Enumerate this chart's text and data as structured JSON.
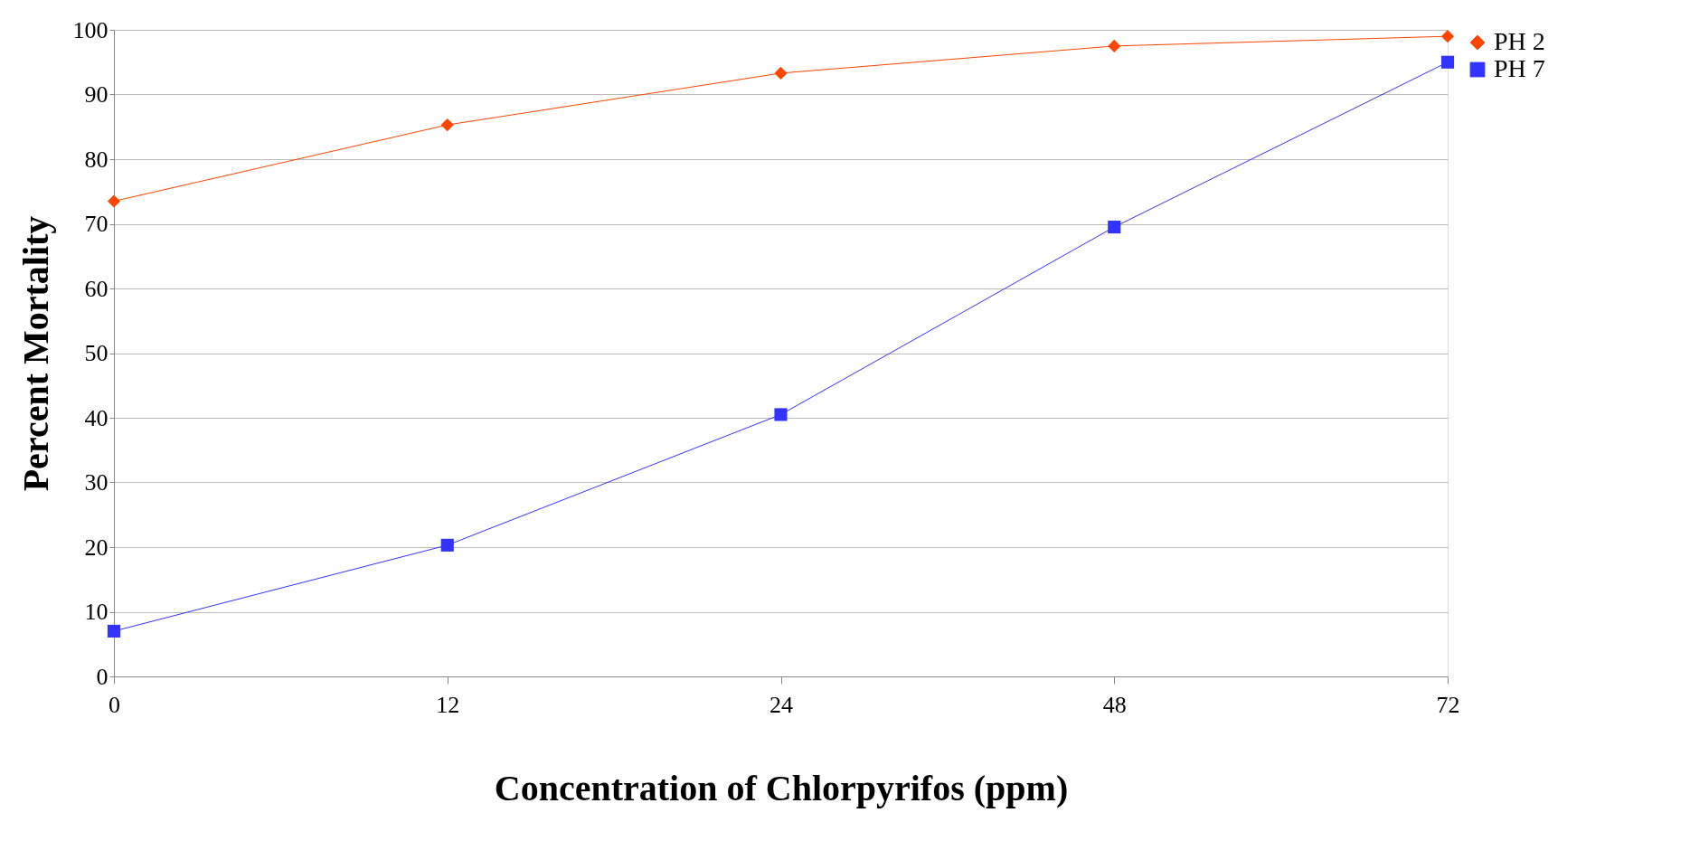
{
  "chart_data": {
    "type": "line",
    "xlabel": "Concentration of Chlorpyrifos (ppm)",
    "ylabel": "Percent Mortality",
    "categories": [
      "0",
      "12",
      "24",
      "48",
      "72"
    ],
    "series": [
      {
        "name": "PH 2",
        "color": "#ff4500",
        "marker": "diamond",
        "values": [
          73.5,
          85.3,
          93.3,
          97.5,
          99
        ]
      },
      {
        "name": "PH 7",
        "color": "#3333ff",
        "marker": "square",
        "values": [
          7,
          20.3,
          40.5,
          69.5,
          95
        ]
      }
    ],
    "ylim": [
      0,
      100
    ],
    "yticks": [
      0,
      10,
      20,
      30,
      40,
      50,
      60,
      70,
      80,
      90,
      100
    ],
    "grid": "y",
    "legend": "right"
  }
}
